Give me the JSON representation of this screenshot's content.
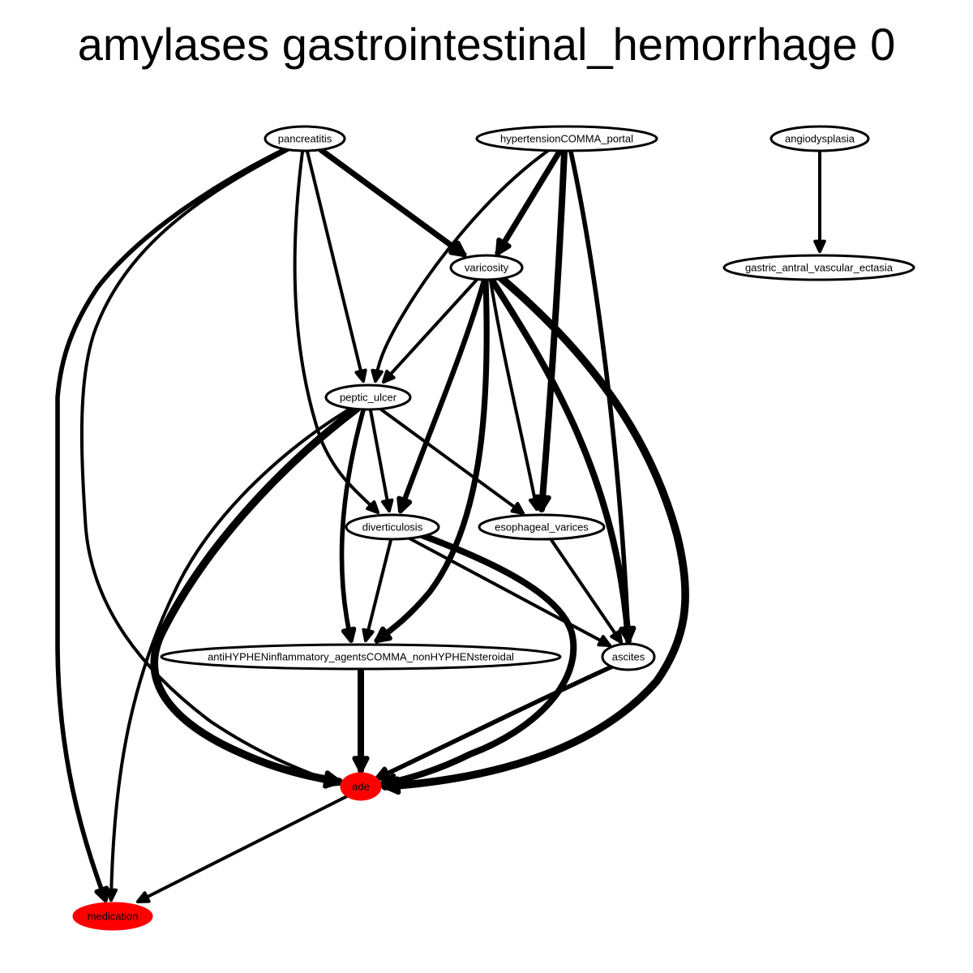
{
  "title": "amylases gastrointestinal_hemorrhage 0",
  "colors": {
    "highlight": "#ff0000",
    "default": "#ffffff",
    "stroke": "#000000"
  },
  "nodes": [
    {
      "id": "pancreatitis",
      "label": "pancreatitis",
      "fill": "white"
    },
    {
      "id": "hypertension_portal",
      "label": "hypertensionCOMMA_portal",
      "fill": "white"
    },
    {
      "id": "angiodysplasia",
      "label": "angiodysplasia",
      "fill": "white"
    },
    {
      "id": "varicosity",
      "label": "varicosity",
      "fill": "white"
    },
    {
      "id": "gave",
      "label": "gastric_antral_vascular_ectasia",
      "fill": "white"
    },
    {
      "id": "peptic_ulcer",
      "label": "peptic_ulcer",
      "fill": "white"
    },
    {
      "id": "diverticulosis",
      "label": "diverticulosis",
      "fill": "white"
    },
    {
      "id": "esophageal_varices",
      "label": "esophageal_varices",
      "fill": "white"
    },
    {
      "id": "nsaids",
      "label": "antiHYPHENinflammatory_agentsCOMMA_nonHYPHENsteroidal",
      "fill": "white"
    },
    {
      "id": "ascites",
      "label": "ascites",
      "fill": "white"
    },
    {
      "id": "ade",
      "label": "ade",
      "fill": "red"
    },
    {
      "id": "medication",
      "label": "medication",
      "fill": "red"
    }
  ],
  "edges": [
    {
      "from": "pancreatitis",
      "to": "varicosity",
      "weight": 9
    },
    {
      "from": "pancreatitis",
      "to": "peptic_ulcer",
      "weight": 5
    },
    {
      "from": "pancreatitis",
      "to": "diverticulosis",
      "weight": 5
    },
    {
      "from": "pancreatitis",
      "to": "ade",
      "weight": 5
    },
    {
      "from": "pancreatitis",
      "to": "medication",
      "weight": 7
    },
    {
      "from": "hypertension_portal",
      "to": "varicosity",
      "weight": 9
    },
    {
      "from": "hypertension_portal",
      "to": "peptic_ulcer",
      "weight": 5
    },
    {
      "from": "hypertension_portal",
      "to": "esophageal_varices",
      "weight": 10
    },
    {
      "from": "hypertension_portal",
      "to": "ascites",
      "weight": 7
    },
    {
      "from": "angiodysplasia",
      "to": "gave",
      "weight": 5
    },
    {
      "from": "varicosity",
      "to": "peptic_ulcer",
      "weight": 5
    },
    {
      "from": "varicosity",
      "to": "diverticulosis",
      "weight": 8
    },
    {
      "from": "varicosity",
      "to": "esophageal_varices",
      "weight": 5
    },
    {
      "from": "varicosity",
      "to": "nsaids",
      "weight": 9
    },
    {
      "from": "varicosity",
      "to": "ascites",
      "weight": 10
    },
    {
      "from": "varicosity",
      "to": "ade",
      "weight": 12
    },
    {
      "from": "peptic_ulcer",
      "to": "diverticulosis",
      "weight": 5
    },
    {
      "from": "peptic_ulcer",
      "to": "esophageal_varices",
      "weight": 5
    },
    {
      "from": "peptic_ulcer",
      "to": "nsaids",
      "weight": 7
    },
    {
      "from": "peptic_ulcer",
      "to": "ade",
      "weight": 12
    },
    {
      "from": "peptic_ulcer",
      "to": "medication",
      "weight": 5
    },
    {
      "from": "diverticulosis",
      "to": "nsaids",
      "weight": 5
    },
    {
      "from": "diverticulosis",
      "to": "ascites",
      "weight": 5
    },
    {
      "from": "diverticulosis",
      "to": "ade",
      "weight": 10
    },
    {
      "from": "esophageal_varices",
      "to": "ascites",
      "weight": 5
    },
    {
      "from": "nsaids",
      "to": "ade",
      "weight": 10
    },
    {
      "from": "ascites",
      "to": "ade",
      "weight": 7
    },
    {
      "from": "ade",
      "to": "medication",
      "weight": 5
    }
  ]
}
